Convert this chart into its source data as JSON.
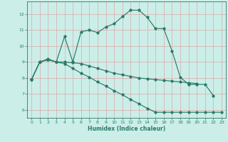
{
  "xlabel": "Humidex (Indice chaleur)",
  "bg_color": "#cceee8",
  "grid_color": "#e8c8c8",
  "line_color": "#2a7a6a",
  "xlim": [
    -0.5,
    23.5
  ],
  "ylim": [
    5.5,
    12.8
  ],
  "yticks": [
    6,
    7,
    8,
    9,
    10,
    11,
    12
  ],
  "xticks": [
    0,
    1,
    2,
    3,
    4,
    5,
    6,
    7,
    8,
    9,
    10,
    11,
    12,
    13,
    14,
    15,
    16,
    17,
    18,
    19,
    20,
    21,
    22,
    23
  ],
  "line1_x": [
    0,
    1,
    2,
    3,
    4,
    5,
    6,
    7,
    8,
    9,
    10,
    11,
    12,
    13,
    14,
    15,
    16,
    17,
    18,
    19,
    20,
    21,
    22
  ],
  "line1_y": [
    7.9,
    9.0,
    9.2,
    9.0,
    10.6,
    9.0,
    10.9,
    11.0,
    10.85,
    11.2,
    11.4,
    11.85,
    12.25,
    12.25,
    11.8,
    11.1,
    11.1,
    9.7,
    8.05,
    7.6,
    7.6,
    7.6,
    6.9
  ],
  "line2_x": [
    0,
    1,
    2,
    3,
    4,
    5,
    6,
    7,
    8,
    9,
    10,
    11,
    12,
    13,
    14,
    15,
    16,
    17,
    18,
    19,
    20
  ],
  "line2_y": [
    7.9,
    9.0,
    9.15,
    9.0,
    9.0,
    8.95,
    8.9,
    8.75,
    8.6,
    8.45,
    8.3,
    8.2,
    8.1,
    8.0,
    7.95,
    7.9,
    7.85,
    7.8,
    7.75,
    7.7,
    7.65
  ],
  "line3_x": [
    0,
    1,
    2,
    3,
    4,
    5,
    6,
    7,
    8,
    9,
    10,
    11,
    12,
    13,
    14,
    15,
    16,
    17,
    18,
    19,
    20,
    21,
    22,
    23
  ],
  "line3_y": [
    7.9,
    9.0,
    9.15,
    9.0,
    8.9,
    8.6,
    8.3,
    8.05,
    7.75,
    7.5,
    7.2,
    6.95,
    6.65,
    6.38,
    6.1,
    5.85,
    5.85,
    5.85,
    5.85,
    5.85,
    5.85,
    5.85,
    5.85,
    5.85
  ]
}
